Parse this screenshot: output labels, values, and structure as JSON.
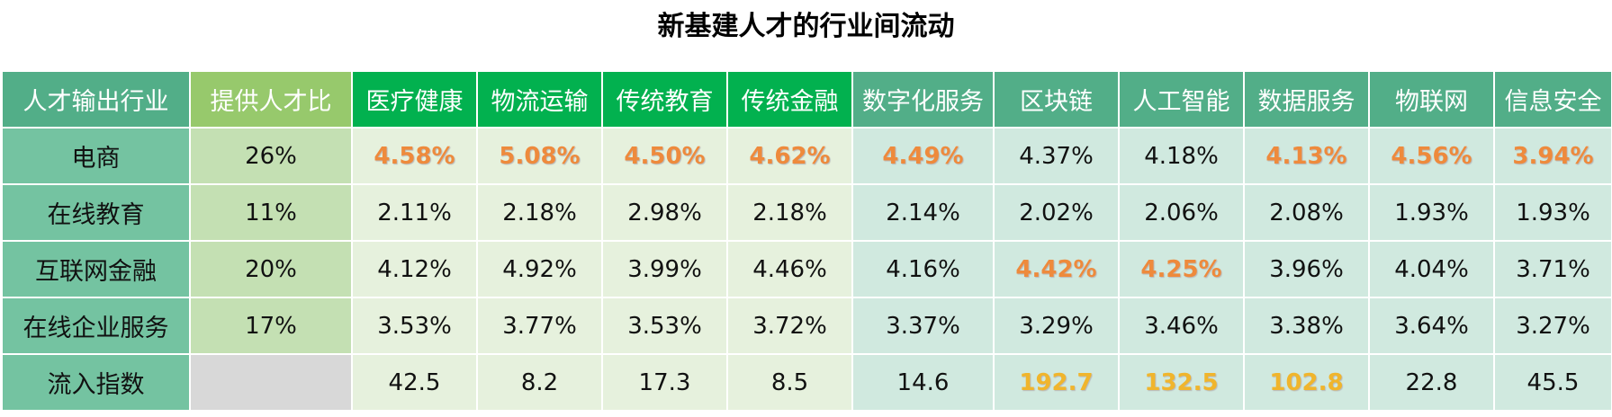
{
  "chart_data": {
    "type": "table",
    "title": "新基建人才的行业间流动",
    "corner_label": "人才输出行业",
    "share_label": "提供人才比",
    "columns": [
      "医疗健康",
      "物流运输",
      "传统教育",
      "传统金融",
      "数字化服务",
      "区块链",
      "人工智能",
      "数据服务",
      "物联网",
      "信息安全"
    ],
    "rows": [
      {
        "label": "电商",
        "share": "26%",
        "values": [
          "4.58%",
          "5.08%",
          "4.50%",
          "4.62%",
          "4.49%",
          "4.37%",
          "4.18%",
          "4.13%",
          "4.56%",
          "3.94%"
        ],
        "highlight": [
          true,
          true,
          true,
          true,
          true,
          false,
          false,
          true,
          true,
          true
        ]
      },
      {
        "label": "在线教育",
        "share": "11%",
        "values": [
          "2.11%",
          "2.18%",
          "2.98%",
          "2.18%",
          "2.14%",
          "2.02%",
          "2.06%",
          "2.08%",
          "1.93%",
          "1.93%"
        ],
        "highlight": [
          false,
          false,
          false,
          false,
          false,
          false,
          false,
          false,
          false,
          false
        ]
      },
      {
        "label": "互联网金融",
        "share": "20%",
        "values": [
          "4.12%",
          "4.92%",
          "3.99%",
          "4.46%",
          "4.16%",
          "4.42%",
          "4.25%",
          "3.96%",
          "4.04%",
          "3.71%"
        ],
        "highlight": [
          false,
          false,
          false,
          false,
          false,
          true,
          true,
          false,
          false,
          false
        ]
      },
      {
        "label": "在线企业服务",
        "share": "17%",
        "values": [
          "3.53%",
          "3.77%",
          "3.53%",
          "3.72%",
          "3.37%",
          "3.29%",
          "3.46%",
          "3.38%",
          "3.64%",
          "3.27%"
        ],
        "highlight": [
          false,
          false,
          false,
          false,
          false,
          false,
          false,
          false,
          false,
          false
        ]
      }
    ],
    "inflow": {
      "label": "流入指数",
      "values": [
        42.5,
        8.2,
        17.3,
        8.5,
        14.6,
        192.7,
        132.5,
        102.8,
        22.8,
        45.5
      ],
      "highlight": [
        false,
        false,
        false,
        false,
        false,
        true,
        true,
        true,
        false,
        false
      ]
    },
    "colors": {
      "header_teal": "#52ae88",
      "header_lime": "#97c96c",
      "header_green": "#02b14f",
      "row_label": "#74c3a1",
      "share_cell": "#c4e0b3",
      "cell_light_green": "#e6f1dd",
      "cell_mint": "#d0e9df",
      "highlight_orange": "#ee8a3c",
      "highlight_gold": "#f0b52c"
    }
  }
}
